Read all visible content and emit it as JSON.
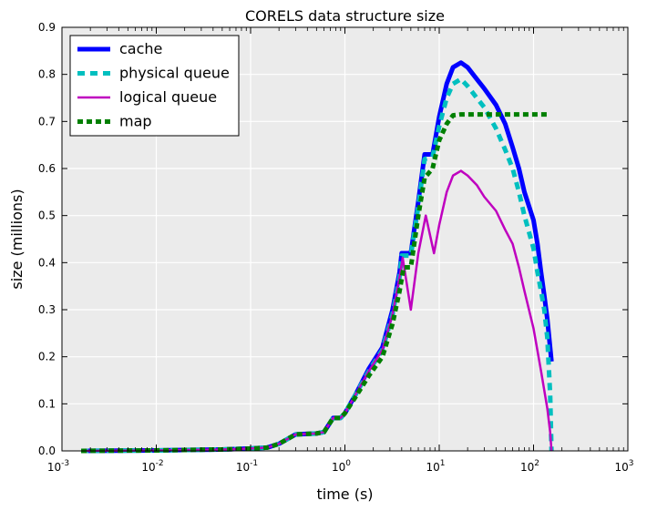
{
  "chart_data": {
    "type": "line",
    "title": "CORELS data structure size",
    "xlabel": "time (s)",
    "ylabel": "size (millions)",
    "xscale": "log",
    "xlim": [
      0.001,
      1000
    ],
    "ylim": [
      0.0,
      0.9
    ],
    "x_ticks": [
      0.001,
      0.01,
      0.1,
      1,
      10,
      100,
      1000
    ],
    "x_tick_labels": [
      {
        "base": "10",
        "exp": "-3"
      },
      {
        "base": "10",
        "exp": "-2"
      },
      {
        "base": "10",
        "exp": "-1"
      },
      {
        "base": "10",
        "exp": "0"
      },
      {
        "base": "10",
        "exp": "1"
      },
      {
        "base": "10",
        "exp": "2"
      },
      {
        "base": "10",
        "exp": "3"
      }
    ],
    "y_ticks": [
      0.0,
      0.1,
      0.2,
      0.3,
      0.4,
      0.5,
      0.6,
      0.7,
      0.8,
      0.9
    ],
    "y_tick_labels": [
      "0.0",
      "0.1",
      "0.2",
      "0.3",
      "0.4",
      "0.5",
      "0.6",
      "0.7",
      "0.8",
      "0.9"
    ],
    "grid": true,
    "background": "#ebebeb",
    "legend_position": "top-left",
    "series": [
      {
        "name": "cache",
        "color": "#0000ff",
        "style": "solid-thick",
        "points": [
          [
            0.0016,
            0.0
          ],
          [
            0.01,
            0.001
          ],
          [
            0.02,
            0.002
          ],
          [
            0.05,
            0.003
          ],
          [
            0.1,
            0.005
          ],
          [
            0.15,
            0.007
          ],
          [
            0.2,
            0.015
          ],
          [
            0.3,
            0.035
          ],
          [
            0.5,
            0.037
          ],
          [
            0.6,
            0.04
          ],
          [
            0.75,
            0.07
          ],
          [
            0.9,
            0.07
          ],
          [
            1.0,
            0.08
          ],
          [
            1.3,
            0.12
          ],
          [
            1.8,
            0.175
          ],
          [
            2.5,
            0.22
          ],
          [
            3.2,
            0.3
          ],
          [
            3.8,
            0.38
          ],
          [
            4.0,
            0.42
          ],
          [
            5.0,
            0.42
          ],
          [
            6.0,
            0.53
          ],
          [
            7.0,
            0.63
          ],
          [
            8.5,
            0.63
          ],
          [
            10,
            0.71
          ],
          [
            12,
            0.78
          ],
          [
            14,
            0.815
          ],
          [
            17,
            0.825
          ],
          [
            20,
            0.815
          ],
          [
            25,
            0.79
          ],
          [
            30,
            0.77
          ],
          [
            40,
            0.735
          ],
          [
            50,
            0.695
          ],
          [
            60,
            0.645
          ],
          [
            70,
            0.6
          ],
          [
            80,
            0.55
          ],
          [
            100,
            0.49
          ],
          [
            110,
            0.44
          ],
          [
            120,
            0.38
          ],
          [
            130,
            0.33
          ],
          [
            140,
            0.28
          ],
          [
            155,
            0.19
          ]
        ]
      },
      {
        "name": "physical queue",
        "color": "#00bfbf",
        "style": "dashed-thick",
        "points": [
          [
            0.0016,
            0.0
          ],
          [
            0.01,
            0.001
          ],
          [
            0.02,
            0.002
          ],
          [
            0.05,
            0.003
          ],
          [
            0.1,
            0.005
          ],
          [
            0.15,
            0.007
          ],
          [
            0.2,
            0.015
          ],
          [
            0.3,
            0.035
          ],
          [
            0.5,
            0.037
          ],
          [
            0.6,
            0.04
          ],
          [
            0.75,
            0.07
          ],
          [
            0.9,
            0.07
          ],
          [
            1.0,
            0.08
          ],
          [
            1.3,
            0.12
          ],
          [
            1.8,
            0.17
          ],
          [
            2.5,
            0.215
          ],
          [
            3.2,
            0.29
          ],
          [
            3.8,
            0.37
          ],
          [
            4.0,
            0.415
          ],
          [
            5.0,
            0.415
          ],
          [
            6.0,
            0.52
          ],
          [
            7.0,
            0.62
          ],
          [
            8.5,
            0.625
          ],
          [
            10,
            0.69
          ],
          [
            12,
            0.75
          ],
          [
            14,
            0.78
          ],
          [
            17,
            0.79
          ],
          [
            20,
            0.775
          ],
          [
            25,
            0.75
          ],
          [
            30,
            0.73
          ],
          [
            40,
            0.685
          ],
          [
            50,
            0.64
          ],
          [
            60,
            0.6
          ],
          [
            70,
            0.55
          ],
          [
            80,
            0.5
          ],
          [
            100,
            0.43
          ],
          [
            110,
            0.38
          ],
          [
            120,
            0.34
          ],
          [
            130,
            0.3
          ],
          [
            140,
            0.24
          ],
          [
            150,
            0.12
          ],
          [
            155,
            0.0
          ]
        ]
      },
      {
        "name": "logical queue",
        "color": "#bf00bf",
        "style": "solid",
        "points": [
          [
            0.0016,
            0.0
          ],
          [
            0.01,
            0.001
          ],
          [
            0.02,
            0.002
          ],
          [
            0.05,
            0.003
          ],
          [
            0.1,
            0.005
          ],
          [
            0.15,
            0.007
          ],
          [
            0.2,
            0.015
          ],
          [
            0.3,
            0.035
          ],
          [
            0.5,
            0.037
          ],
          [
            0.6,
            0.04
          ],
          [
            0.75,
            0.07
          ],
          [
            0.9,
            0.07
          ],
          [
            1.0,
            0.08
          ],
          [
            1.3,
            0.12
          ],
          [
            1.8,
            0.17
          ],
          [
            2.5,
            0.215
          ],
          [
            3.2,
            0.29
          ],
          [
            3.8,
            0.37
          ],
          [
            4.1,
            0.41
          ],
          [
            5.0,
            0.3
          ],
          [
            6.0,
            0.42
          ],
          [
            7.2,
            0.5
          ],
          [
            8.8,
            0.42
          ],
          [
            10,
            0.48
          ],
          [
            12,
            0.55
          ],
          [
            14,
            0.585
          ],
          [
            17,
            0.595
          ],
          [
            20,
            0.585
          ],
          [
            25,
            0.565
          ],
          [
            30,
            0.54
          ],
          [
            40,
            0.51
          ],
          [
            50,
            0.47
          ],
          [
            60,
            0.44
          ],
          [
            70,
            0.39
          ],
          [
            80,
            0.34
          ],
          [
            100,
            0.26
          ],
          [
            120,
            0.17
          ],
          [
            140,
            0.09
          ],
          [
            150,
            0.04
          ],
          [
            155,
            0.0
          ]
        ]
      },
      {
        "name": "map",
        "color": "#007f00",
        "style": "dotted-thick",
        "points": [
          [
            0.0016,
            0.0
          ],
          [
            0.01,
            0.001
          ],
          [
            0.02,
            0.002
          ],
          [
            0.05,
            0.003
          ],
          [
            0.1,
            0.005
          ],
          [
            0.15,
            0.007
          ],
          [
            0.2,
            0.015
          ],
          [
            0.3,
            0.035
          ],
          [
            0.5,
            0.037
          ],
          [
            0.6,
            0.04
          ],
          [
            0.75,
            0.07
          ],
          [
            0.9,
            0.07
          ],
          [
            1.0,
            0.08
          ],
          [
            1.3,
            0.115
          ],
          [
            1.8,
            0.16
          ],
          [
            2.5,
            0.2
          ],
          [
            3.2,
            0.27
          ],
          [
            3.8,
            0.34
          ],
          [
            4.2,
            0.39
          ],
          [
            5.0,
            0.39
          ],
          [
            6.0,
            0.5
          ],
          [
            7.0,
            0.58
          ],
          [
            8.5,
            0.6
          ],
          [
            10,
            0.66
          ],
          [
            12,
            0.695
          ],
          [
            14,
            0.713
          ],
          [
            17,
            0.715
          ],
          [
            30,
            0.715
          ],
          [
            60,
            0.715
          ],
          [
            100,
            0.715
          ],
          [
            150,
            0.715
          ]
        ]
      }
    ]
  }
}
